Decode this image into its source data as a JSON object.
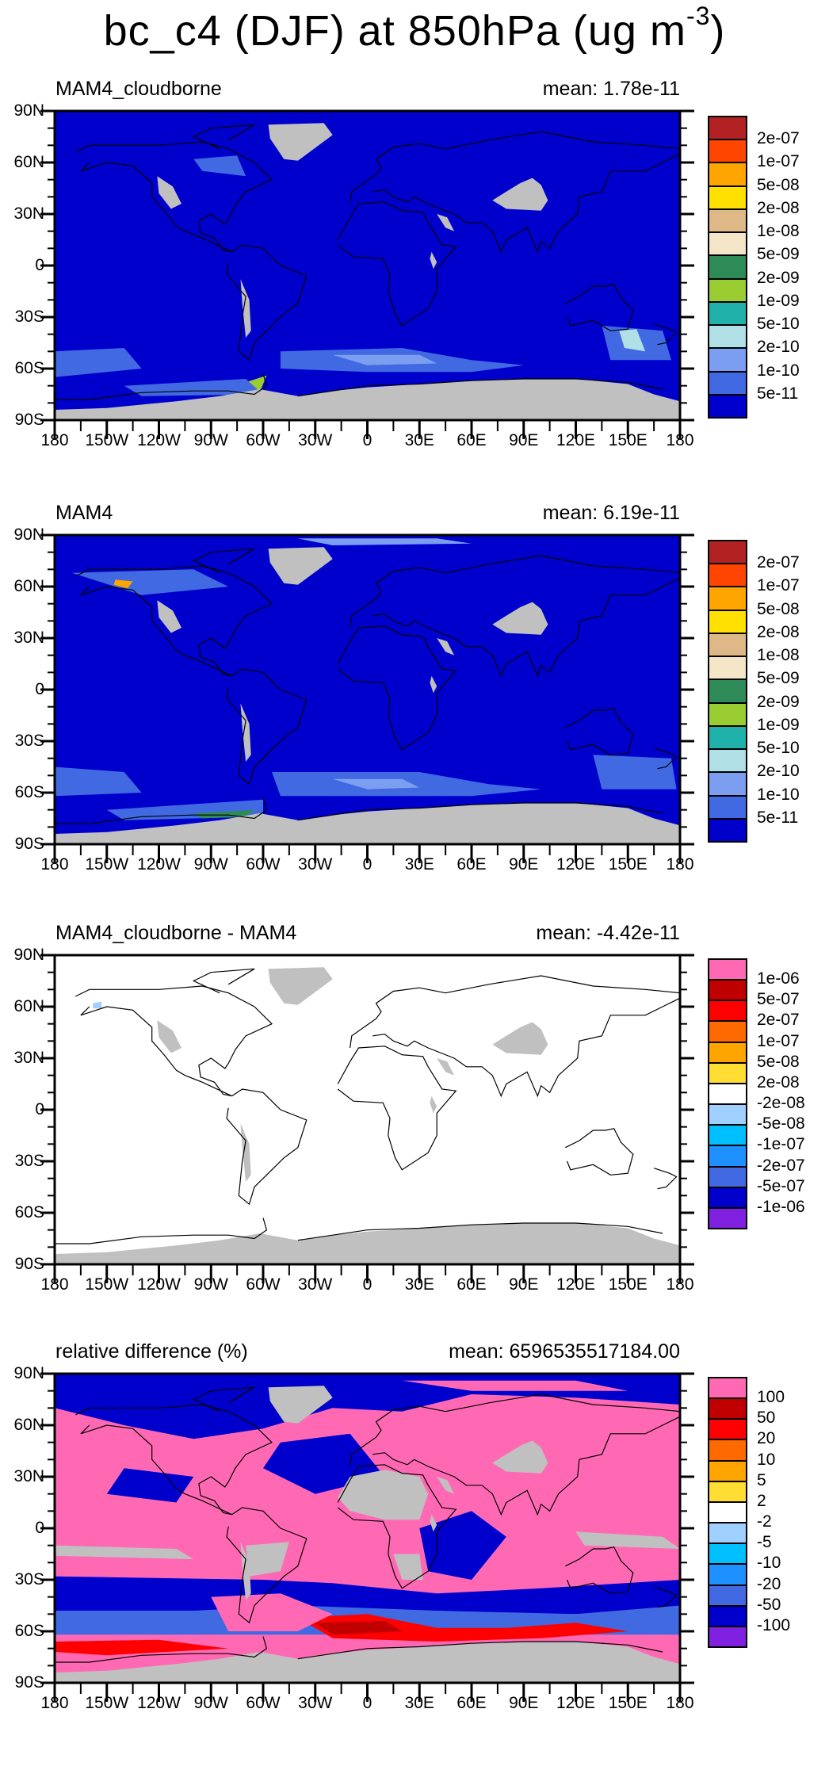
{
  "title": {
    "main": "bc_c4 (DJF) at 850hPa (ug m",
    "superscript": "-3",
    "close": ")"
  },
  "chart_data": [
    {
      "type": "heatmap",
      "title": "MAM4_cloudborne",
      "mean_label": "mean: 1.78e-11",
      "background_color": "#0000CD",
      "colorbar": {
        "colors": [
          "#B22222",
          "#FF4500",
          "#FFA500",
          "#FFE000",
          "#DEB887",
          "#F5E6C8",
          "#2E8B57",
          "#9ACD32",
          "#20B2AA",
          "#B0E0E6",
          "#7B9EF0",
          "#4169E1",
          "#0000CD"
        ],
        "labels": [
          "2e-07",
          "1e-07",
          "5e-08",
          "2e-08",
          "1e-08",
          "5e-09",
          "2e-09",
          "1e-09",
          "5e-10",
          "2e-10",
          "1e-10",
          "5e-11"
        ]
      }
    },
    {
      "type": "heatmap",
      "title": "MAM4",
      "mean_label": "mean: 6.19e-11",
      "background_color": "#0000CD",
      "colorbar": {
        "colors": [
          "#B22222",
          "#FF4500",
          "#FFA500",
          "#FFE000",
          "#DEB887",
          "#F5E6C8",
          "#2E8B57",
          "#9ACD32",
          "#20B2AA",
          "#B0E0E6",
          "#7B9EF0",
          "#4169E1",
          "#0000CD"
        ],
        "labels": [
          "2e-07",
          "1e-07",
          "5e-08",
          "2e-08",
          "1e-08",
          "5e-09",
          "2e-09",
          "1e-09",
          "5e-10",
          "2e-10",
          "1e-10",
          "5e-11"
        ]
      }
    },
    {
      "type": "heatmap",
      "title": "MAM4_cloudborne - MAM4",
      "mean_label": "mean: -4.42e-11",
      "background_color": "#FFFFFF",
      "colorbar": {
        "colors": [
          "#FF69B4",
          "#C00000",
          "#FF0000",
          "#FF6A00",
          "#FFA500",
          "#FFDD33",
          "#FFFFFF",
          "#A0D0FF",
          "#00BFFF",
          "#1E90FF",
          "#4169E1",
          "#0000CD",
          "#8020E0"
        ],
        "labels": [
          "1e-06",
          "5e-07",
          "2e-07",
          "1e-07",
          "5e-08",
          "2e-08",
          "-2e-08",
          "-5e-08",
          "-1e-07",
          "-2e-07",
          "-5e-07",
          "-1e-06"
        ]
      }
    },
    {
      "type": "heatmap",
      "title": "relative difference (%)",
      "mean_label": "mean: 6596535517184.00",
      "background_color": "#FF69B4",
      "colorbar": {
        "colors": [
          "#FF69B4",
          "#C00000",
          "#FF0000",
          "#FF6A00",
          "#FFA500",
          "#FFDD33",
          "#FFFFFF",
          "#A0D0FF",
          "#00BFFF",
          "#1E90FF",
          "#4169E1",
          "#0000CD",
          "#8020E0"
        ],
        "labels": [
          "100",
          "50",
          "20",
          "10",
          "5",
          "2",
          "-2",
          "-5",
          "-10",
          "-20",
          "-50",
          "-100"
        ]
      }
    }
  ],
  "axes": {
    "x_ticks": [
      "180",
      "150W",
      "120W",
      "90W",
      "60W",
      "30W",
      "0",
      "30E",
      "60E",
      "90E",
      "120E",
      "150E",
      "180"
    ],
    "x_range": [
      -180,
      180
    ],
    "y_ticks": [
      "90N",
      "60N",
      "30N",
      "0",
      "30S",
      "60S",
      "90S"
    ],
    "y_range": [
      90,
      -90
    ],
    "missing_color": "#C0C0C0"
  }
}
